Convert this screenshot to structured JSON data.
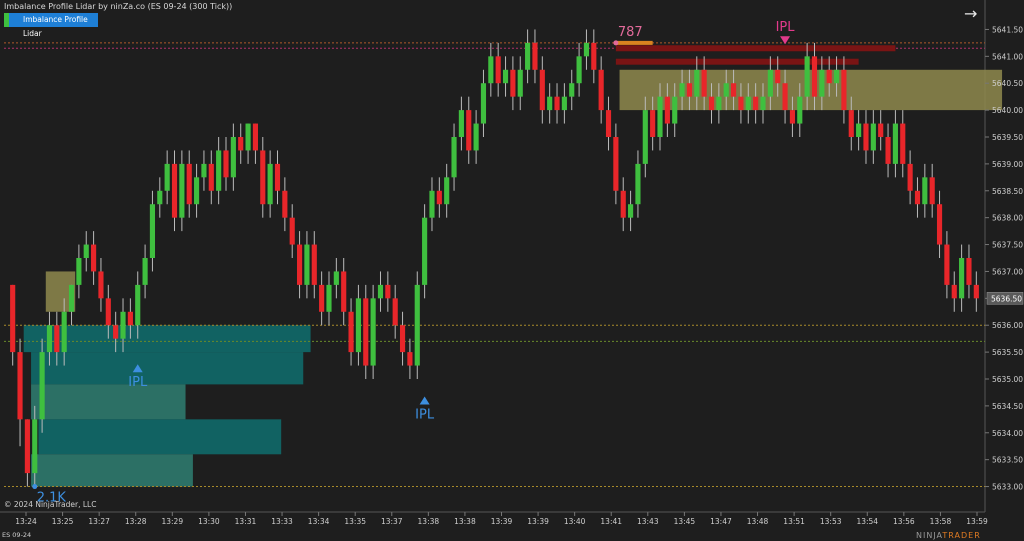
{
  "header": {
    "title": "Imbalance Profile Lidar by ninZa.co (ES 09-24 (300 Tick))",
    "indicator_button": "Imbalance Profile Lidar"
  },
  "footer": {
    "copyright": "© 2024 NinjaTrader, LLC",
    "instrument": "ES 09-24",
    "brand_prefix": "NINJA",
    "brand_suffix": "TRADER"
  },
  "icons": {
    "top_right": "arrow-right-icon"
  },
  "colors": {
    "bull": "#3fbf3f",
    "bear": "#e8262a",
    "background": "#1e1e1e",
    "profile_teal": "#0f6e6e",
    "zone_olive": "#8f8a4d",
    "ipl_blue": "#3d8fe0",
    "ipl_pink": "#e23a8b"
  },
  "chart_data": {
    "type": "candlestick",
    "ylim": [
      5632.75,
      5641.75
    ],
    "yticks": [
      5633.0,
      5633.5,
      5634.0,
      5634.5,
      5635.0,
      5635.5,
      5636.0,
      5636.5,
      5637.0,
      5637.5,
      5638.0,
      5638.5,
      5639.0,
      5639.5,
      5640.0,
      5640.5,
      5641.0,
      5641.5
    ],
    "xticks": [
      "13:24",
      "13:25",
      "13:27",
      "13:28",
      "13:29",
      "13:30",
      "13:31",
      "13:33",
      "13:34",
      "13:35",
      "13:37",
      "13:38",
      "13:38",
      "13:39",
      "13:39",
      "13:40",
      "13:41",
      "13:43",
      "13:45",
      "13:47",
      "13:48",
      "13:51",
      "13:53",
      "13:54",
      "13:56",
      "13:58",
      "13:59"
    ],
    "current_price": "5636.50",
    "candles": [
      [
        5636.75,
        5635.5,
        5636.75,
        5635.25
      ],
      [
        5635.5,
        5634.25,
        5635.75,
        5633.75
      ],
      [
        5634.25,
        5633.25,
        5634.25,
        5633.0
      ],
      [
        5633.25,
        5634.25,
        5634.5,
        5633.0
      ],
      [
        5634.25,
        5635.5,
        5635.75,
        5634.0
      ],
      [
        5635.5,
        5636.0,
        5636.25,
        5635.25
      ],
      [
        5636.0,
        5635.5,
        5636.25,
        5635.25
      ],
      [
        5635.5,
        5636.25,
        5636.5,
        5635.25
      ],
      [
        5636.25,
        5636.75,
        5636.75,
        5636.0
      ],
      [
        5636.75,
        5637.25,
        5637.5,
        5636.5
      ],
      [
        5637.25,
        5637.5,
        5637.75,
        5637.0
      ],
      [
        5637.5,
        5637.0,
        5637.75,
        5636.75
      ],
      [
        5637.0,
        5636.5,
        5637.25,
        5636.25
      ],
      [
        5636.5,
        5636.0,
        5636.75,
        5635.75
      ],
      [
        5636.0,
        5635.75,
        5636.25,
        5635.5
      ],
      [
        5635.75,
        5636.25,
        5636.5,
        5635.5
      ],
      [
        5636.25,
        5636.0,
        5636.5,
        5635.75
      ],
      [
        5636.0,
        5636.75,
        5637.0,
        5635.75
      ],
      [
        5636.75,
        5637.25,
        5637.5,
        5636.5
      ],
      [
        5637.25,
        5638.25,
        5638.5,
        5637.0
      ],
      [
        5638.25,
        5638.5,
        5638.75,
        5638.0
      ],
      [
        5638.5,
        5639.0,
        5639.25,
        5638.25
      ],
      [
        5639.0,
        5638.0,
        5639.25,
        5637.75
      ],
      [
        5638.0,
        5639.0,
        5639.25,
        5637.75
      ],
      [
        5639.0,
        5638.25,
        5639.25,
        5638.0
      ],
      [
        5638.25,
        5638.75,
        5639.0,
        5638.0
      ],
      [
        5638.75,
        5639.0,
        5639.25,
        5638.5
      ],
      [
        5639.0,
        5638.5,
        5639.25,
        5638.25
      ],
      [
        5638.5,
        5639.25,
        5639.5,
        5638.25
      ],
      [
        5639.25,
        5638.75,
        5639.5,
        5638.5
      ],
      [
        5638.75,
        5639.5,
        5639.75,
        5638.5
      ],
      [
        5639.5,
        5639.25,
        5639.75,
        5639.0
      ],
      [
        5639.25,
        5639.75,
        5639.75,
        5639.0
      ],
      [
        5639.75,
        5639.25,
        5639.75,
        5639.0
      ],
      [
        5639.25,
        5638.25,
        5639.5,
        5638.0
      ],
      [
        5638.25,
        5639.0,
        5639.25,
        5638.0
      ],
      [
        5639.0,
        5638.5,
        5639.25,
        5638.25
      ],
      [
        5638.5,
        5638.0,
        5638.75,
        5637.75
      ],
      [
        5638.0,
        5637.5,
        5638.25,
        5637.25
      ],
      [
        5637.5,
        5636.75,
        5637.75,
        5636.5
      ],
      [
        5636.75,
        5637.5,
        5637.75,
        5636.5
      ],
      [
        5637.5,
        5636.75,
        5637.75,
        5636.5
      ],
      [
        5636.75,
        5636.25,
        5637.0,
        5636.0
      ],
      [
        5636.25,
        5636.75,
        5637.0,
        5636.0
      ],
      [
        5636.75,
        5637.0,
        5637.25,
        5636.5
      ],
      [
        5637.0,
        5636.25,
        5637.25,
        5636.0
      ],
      [
        5636.25,
        5635.5,
        5636.5,
        5635.25
      ],
      [
        5635.5,
        5636.5,
        5636.75,
        5635.25
      ],
      [
        5636.5,
        5635.25,
        5636.75,
        5635.0
      ],
      [
        5635.25,
        5636.5,
        5636.75,
        5635.0
      ],
      [
        5636.5,
        5636.75,
        5637.0,
        5636.25
      ],
      [
        5636.75,
        5636.5,
        5637.0,
        5636.25
      ],
      [
        5636.5,
        5636.0,
        5636.75,
        5635.75
      ],
      [
        5636.0,
        5635.5,
        5636.25,
        5635.25
      ],
      [
        5635.5,
        5635.25,
        5635.75,
        5635.0
      ],
      [
        5635.25,
        5636.75,
        5637.0,
        5635.0
      ],
      [
        5636.75,
        5638.0,
        5638.25,
        5636.5
      ],
      [
        5638.0,
        5638.5,
        5638.75,
        5637.75
      ],
      [
        5638.5,
        5638.25,
        5638.75,
        5638.0
      ],
      [
        5638.25,
        5638.75,
        5639.0,
        5638.0
      ],
      [
        5638.75,
        5639.5,
        5639.75,
        5638.5
      ],
      [
        5639.5,
        5640.0,
        5640.25,
        5639.25
      ],
      [
        5640.0,
        5639.25,
        5640.25,
        5639.0
      ],
      [
        5639.25,
        5639.75,
        5640.0,
        5639.0
      ],
      [
        5639.75,
        5640.5,
        5640.75,
        5639.5
      ],
      [
        5640.5,
        5641.0,
        5641.25,
        5640.25
      ],
      [
        5641.0,
        5640.5,
        5641.25,
        5640.25
      ],
      [
        5640.5,
        5640.75,
        5641.0,
        5640.25
      ],
      [
        5640.75,
        5640.25,
        5641.0,
        5640.0
      ],
      [
        5640.25,
        5640.75,
        5641.0,
        5640.0
      ],
      [
        5640.75,
        5641.25,
        5641.5,
        5640.5
      ],
      [
        5641.25,
        5640.75,
        5641.5,
        5640.5
      ],
      [
        5640.75,
        5640.0,
        5641.0,
        5639.75
      ],
      [
        5640.0,
        5640.25,
        5640.5,
        5639.75
      ],
      [
        5640.25,
        5640.0,
        5640.5,
        5639.75
      ],
      [
        5640.0,
        5640.25,
        5640.5,
        5639.75
      ],
      [
        5640.25,
        5640.5,
        5640.75,
        5640.0
      ],
      [
        5640.5,
        5641.0,
        5641.25,
        5640.25
      ],
      [
        5641.0,
        5641.25,
        5641.5,
        5640.75
      ],
      [
        5641.25,
        5640.75,
        5641.5,
        5640.5
      ],
      [
        5640.75,
        5640.0,
        5641.0,
        5639.75
      ],
      [
        5640.0,
        5639.5,
        5640.25,
        5639.25
      ],
      [
        5639.5,
        5638.5,
        5639.75,
        5638.25
      ],
      [
        5638.5,
        5638.0,
        5638.75,
        5637.75
      ],
      [
        5638.0,
        5638.25,
        5638.5,
        5637.75
      ],
      [
        5638.25,
        5639.0,
        5639.25,
        5638.0
      ],
      [
        5639.0,
        5640.0,
        5640.25,
        5638.75
      ],
      [
        5640.0,
        5639.5,
        5640.25,
        5639.25
      ],
      [
        5639.5,
        5640.25,
        5640.5,
        5639.25
      ],
      [
        5640.25,
        5639.75,
        5640.5,
        5639.5
      ],
      [
        5639.75,
        5640.25,
        5640.5,
        5639.5
      ],
      [
        5640.25,
        5640.5,
        5640.75,
        5640.0
      ],
      [
        5640.5,
        5640.25,
        5640.75,
        5640.0
      ],
      [
        5640.25,
        5640.75,
        5641.0,
        5640.0
      ],
      [
        5640.75,
        5640.25,
        5641.0,
        5640.0
      ],
      [
        5640.25,
        5640.0,
        5640.5,
        5639.75
      ],
      [
        5640.0,
        5640.25,
        5640.5,
        5639.75
      ],
      [
        5640.25,
        5640.5,
        5640.75,
        5640.0
      ],
      [
        5640.5,
        5640.25,
        5640.75,
        5640.0
      ],
      [
        5640.25,
        5640.0,
        5640.5,
        5639.75
      ],
      [
        5640.0,
        5640.25,
        5640.5,
        5639.75
      ],
      [
        5640.25,
        5640.0,
        5640.5,
        5639.75
      ],
      [
        5640.0,
        5640.25,
        5640.5,
        5639.75
      ],
      [
        5640.25,
        5640.75,
        5641.0,
        5640.0
      ],
      [
        5640.75,
        5640.5,
        5641.0,
        5640.25
      ],
      [
        5640.5,
        5640.0,
        5640.75,
        5639.75
      ],
      [
        5640.0,
        5639.75,
        5640.25,
        5639.5
      ],
      [
        5639.75,
        5640.25,
        5640.5,
        5639.5
      ],
      [
        5640.25,
        5641.0,
        5641.25,
        5640.0
      ],
      [
        5641.0,
        5640.25,
        5641.25,
        5640.0
      ],
      [
        5640.25,
        5640.75,
        5641.0,
        5640.0
      ],
      [
        5640.75,
        5640.5,
        5641.0,
        5640.25
      ],
      [
        5640.5,
        5640.75,
        5641.0,
        5640.25
      ],
      [
        5640.75,
        5640.0,
        5641.0,
        5639.75
      ],
      [
        5640.0,
        5639.5,
        5640.25,
        5639.25
      ],
      [
        5639.5,
        5639.75,
        5640.0,
        5639.25
      ],
      [
        5639.75,
        5639.25,
        5640.0,
        5639.0
      ],
      [
        5639.25,
        5639.75,
        5640.0,
        5639.0
      ],
      [
        5639.75,
        5639.5,
        5640.0,
        5639.25
      ],
      [
        5639.5,
        5639.0,
        5639.75,
        5638.75
      ],
      [
        5639.0,
        5639.75,
        5640.0,
        5638.75
      ],
      [
        5639.75,
        5639.0,
        5640.0,
        5638.75
      ],
      [
        5639.0,
        5638.5,
        5639.25,
        5638.25
      ],
      [
        5638.5,
        5638.25,
        5638.75,
        5638.0
      ],
      [
        5638.25,
        5638.75,
        5639.0,
        5638.0
      ],
      [
        5638.75,
        5638.25,
        5639.0,
        5638.0
      ],
      [
        5638.25,
        5637.5,
        5638.5,
        5637.25
      ],
      [
        5637.5,
        5636.75,
        5637.75,
        5636.5
      ],
      [
        5636.75,
        5636.5,
        5637.0,
        5636.25
      ],
      [
        5636.5,
        5637.25,
        5637.5,
        5636.25
      ],
      [
        5637.25,
        5636.75,
        5637.5,
        5636.5
      ],
      [
        5636.75,
        5636.5,
        5637.0,
        5636.25
      ]
    ],
    "profile_boxes": [
      {
        "price_hi": 5637.0,
        "price_lo": 5636.25,
        "x_from": 5,
        "x_to": 9,
        "color": "#8f8a4d"
      },
      {
        "price_hi": 5636.0,
        "price_lo": 5635.5,
        "x_from": 2,
        "x_to": 41,
        "color": "#0f6e6e"
      },
      {
        "price_hi": 5635.5,
        "price_lo": 5634.9,
        "x_from": 3,
        "x_to": 40,
        "color": "#0f6e6e"
      },
      {
        "price_hi": 5634.9,
        "price_lo": 5634.25,
        "x_from": 3,
        "x_to": 24,
        "color": "#2f7f72"
      },
      {
        "price_hi": 5634.25,
        "price_lo": 5633.6,
        "x_from": 4,
        "x_to": 37,
        "color": "#0f6e6e"
      },
      {
        "price_hi": 5633.6,
        "price_lo": 5633.0,
        "x_from": 3,
        "x_to": 25,
        "color": "#2f7f72"
      },
      {
        "price_hi": 5640.75,
        "price_lo": 5640.0,
        "x_from": 83,
        "x_to": 135,
        "color": "#8f8a4d"
      }
    ],
    "red_bars": [
      {
        "price": 5641.15,
        "x_from": 82,
        "x_to": 120
      },
      {
        "price": 5640.9,
        "x_from": 82,
        "x_to": 115
      }
    ],
    "orange_bar": {
      "price": 5641.25,
      "x_from": 82,
      "x_to": 87
    },
    "levels": [
      {
        "price": 5641.25,
        "color": "#b05a2a"
      },
      {
        "price": 5641.15,
        "color": "#b0306a"
      },
      {
        "price": 5636.0,
        "color": "#a78a2a"
      },
      {
        "price": 5635.7,
        "color": "#6a8a2a"
      },
      {
        "price": 5633.0,
        "color": "#a78a2a"
      }
    ],
    "annotations": [
      {
        "text": "IPL",
        "type": "up",
        "price": 5635.2,
        "x": 17,
        "color": "#3d8fe0"
      },
      {
        "text": "IPL",
        "type": "up",
        "price": 5634.6,
        "x": 56,
        "color": "#3d8fe0"
      },
      {
        "text": "IPL",
        "type": "down",
        "price": 5641.3,
        "x": 105,
        "color": "#e23a8b"
      },
      {
        "text": "787",
        "type": "dot",
        "price": 5641.25,
        "x": 82,
        "color": "#e26a9a"
      },
      {
        "text": "2.1K",
        "type": "dot",
        "price": 5633.0,
        "x": 3,
        "color": "#3d8fe0"
      }
    ]
  }
}
